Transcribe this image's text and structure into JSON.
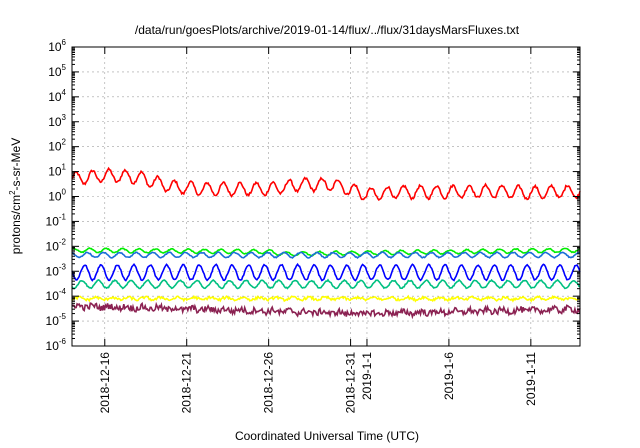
{
  "chart_data": {
    "type": "line",
    "title": "/data/run/goesPlots/archive/2019-01-14/flux/../flux/31daysMarsFluxes.txt",
    "xlabel": "Coordinated Universal Time (UTC)",
    "ylabel": "protons/cm²-s-sr-MeV",
    "yscale": "log",
    "ylim": [
      1e-06,
      1000000.0
    ],
    "y_ticks": [
      {
        "base": "10",
        "exp": "-6",
        "value": 1e-06
      },
      {
        "base": "10",
        "exp": "-5",
        "value": 1e-05
      },
      {
        "base": "10",
        "exp": "-4",
        "value": 0.0001
      },
      {
        "base": "10",
        "exp": "-3",
        "value": 0.001
      },
      {
        "base": "10",
        "exp": "-2",
        "value": 0.01
      },
      {
        "base": "10",
        "exp": "-1",
        "value": 0.1
      },
      {
        "base": "10",
        "exp": "0",
        "value": 1
      },
      {
        "base": "10",
        "exp": "1",
        "value": 10
      },
      {
        "base": "10",
        "exp": "2",
        "value": 100
      },
      {
        "base": "10",
        "exp": "3",
        "value": 1000
      },
      {
        "base": "10",
        "exp": "4",
        "value": 10000
      },
      {
        "base": "10",
        "exp": "5",
        "value": 100000
      },
      {
        "base": "10",
        "exp": "6",
        "value": 1000000
      }
    ],
    "xlim": [
      "2018-12-14",
      "2019-01-14"
    ],
    "x_ticks": [
      {
        "label": "2018-12-16",
        "date": "2018-12-16"
      },
      {
        "label": "2018-12-21",
        "date": "2018-12-21"
      },
      {
        "label": "2018-12-26",
        "date": "2018-12-26"
      },
      {
        "label": "2018-12-31",
        "date": "2018-12-31"
      },
      {
        "label": "2019-1-1",
        "date": "2019-01-01"
      },
      {
        "label": "2019-1-6",
        "date": "2019-01-06"
      },
      {
        "label": "2019-1-11",
        "date": "2019-01-11"
      }
    ],
    "grid": true,
    "series": [
      {
        "color": "#ff0000",
        "base": 2.0,
        "amp": 0.25,
        "noise": 0.1,
        "x": [
          "2018-12-14",
          "2018-12-16",
          "2018-12-18",
          "2018-12-20",
          "2018-12-22",
          "2018-12-24",
          "2018-12-26",
          "2018-12-28",
          "2018-12-30",
          "2019-01-01",
          "2019-01-03",
          "2019-01-05",
          "2019-01-07",
          "2019-01-09",
          "2019-01-11",
          "2019-01-13",
          "2019-01-14"
        ],
        "y": [
          5,
          7,
          6,
          2.5,
          2,
          2,
          2,
          3,
          3,
          1.2,
          1.5,
          1.5,
          1.6,
          1.6,
          1.4,
          1.6,
          1.6
        ]
      },
      {
        "color": "#00ee00",
        "base": 0.007,
        "amp": 0.08,
        "noise": 0.04,
        "x": [
          "2018-12-14",
          "2018-12-26",
          "2018-12-27",
          "2019-01-14"
        ],
        "y": [
          0.007,
          0.006,
          0.005,
          0.007
        ]
      },
      {
        "color": "#1c6fd8",
        "base": 0.004,
        "amp": 0.1,
        "noise": 0.04,
        "x": [
          "2018-12-14",
          "2019-01-14"
        ],
        "y": [
          0.0045,
          0.0045
        ]
      },
      {
        "color": "#0000ff",
        "base": 0.0009,
        "amp": 0.3,
        "noise": 0.06,
        "x": [
          "2018-12-14",
          "2019-01-14"
        ],
        "y": [
          0.0009,
          0.0009
        ]
      },
      {
        "color": "#00c080",
        "base": 0.0003,
        "amp": 0.15,
        "noise": 0.05,
        "x": [
          "2018-12-14",
          "2019-01-14"
        ],
        "y": [
          0.0003,
          0.0003
        ]
      },
      {
        "color": "#ffff00",
        "base": 8e-05,
        "amp": 0.05,
        "noise": 0.1,
        "x": [
          "2018-12-14",
          "2019-01-14"
        ],
        "y": [
          8e-05,
          8e-05
        ]
      },
      {
        "color": "#8b2252",
        "base": 3e-05,
        "amp": 0.05,
        "noise": 0.25,
        "x": [
          "2018-12-14",
          "2019-01-01",
          "2019-01-14"
        ],
        "y": [
          4e-05,
          2e-05,
          3e-05
        ]
      }
    ]
  }
}
